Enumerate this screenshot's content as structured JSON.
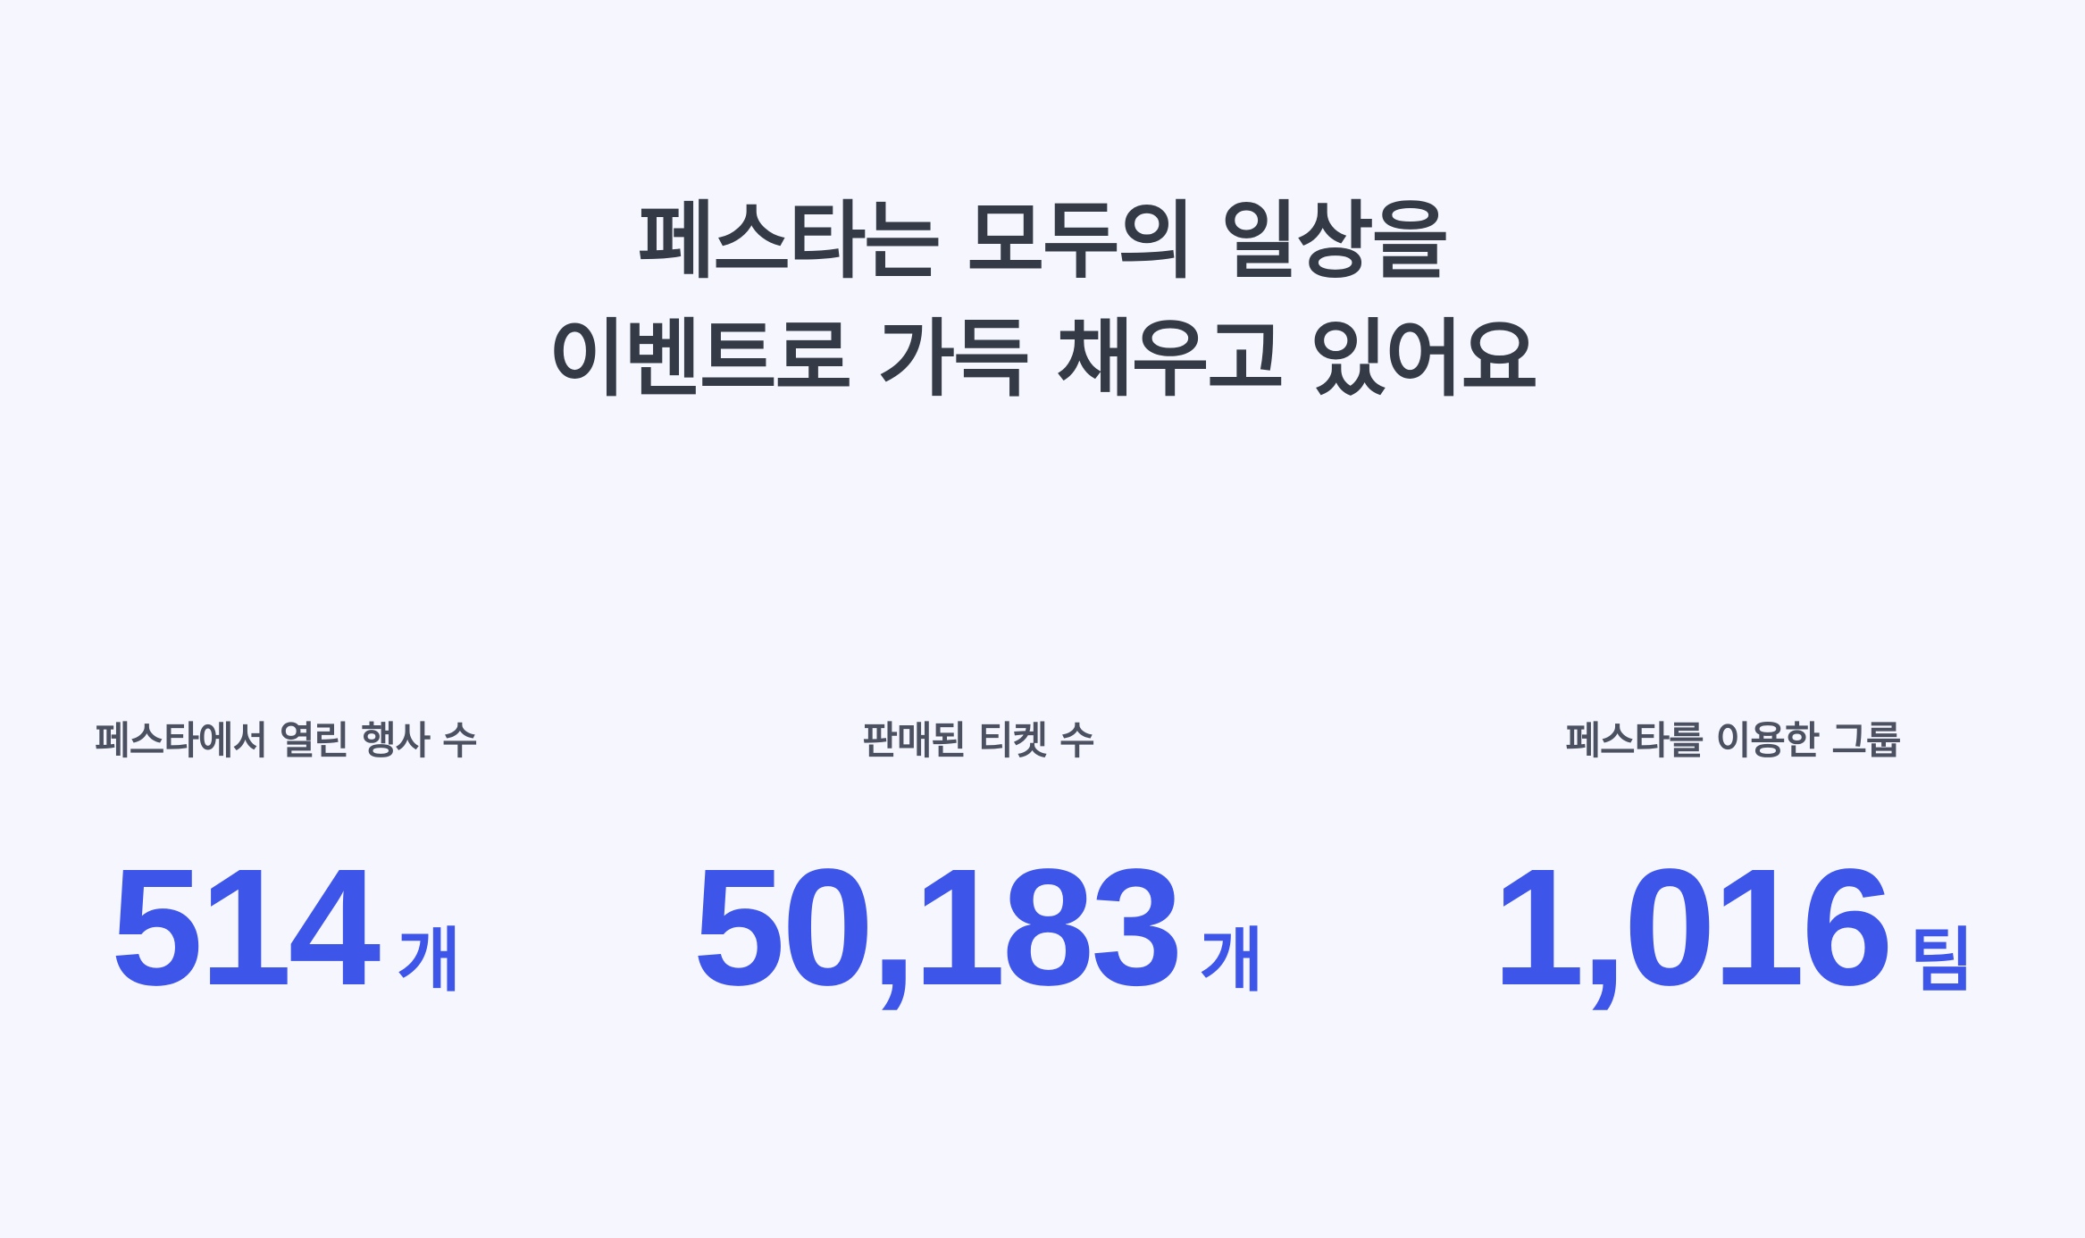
{
  "headline": {
    "line1": "페스타는 모두의 일상을",
    "line2": "이벤트로 가득 채우고 있어요"
  },
  "stats": [
    {
      "label": "페스타에서 열린 행사 수",
      "value": "514",
      "unit": "개"
    },
    {
      "label": "판매된 티켓 수",
      "value": "50,183",
      "unit": "개"
    },
    {
      "label": "페스타를 이용한 그룹",
      "value": "1,016",
      "unit": "팀"
    }
  ],
  "colors": {
    "background": "#f5f6fe",
    "headline": "#343a46",
    "label": "#4b5160",
    "accent": "#3d55e8"
  }
}
